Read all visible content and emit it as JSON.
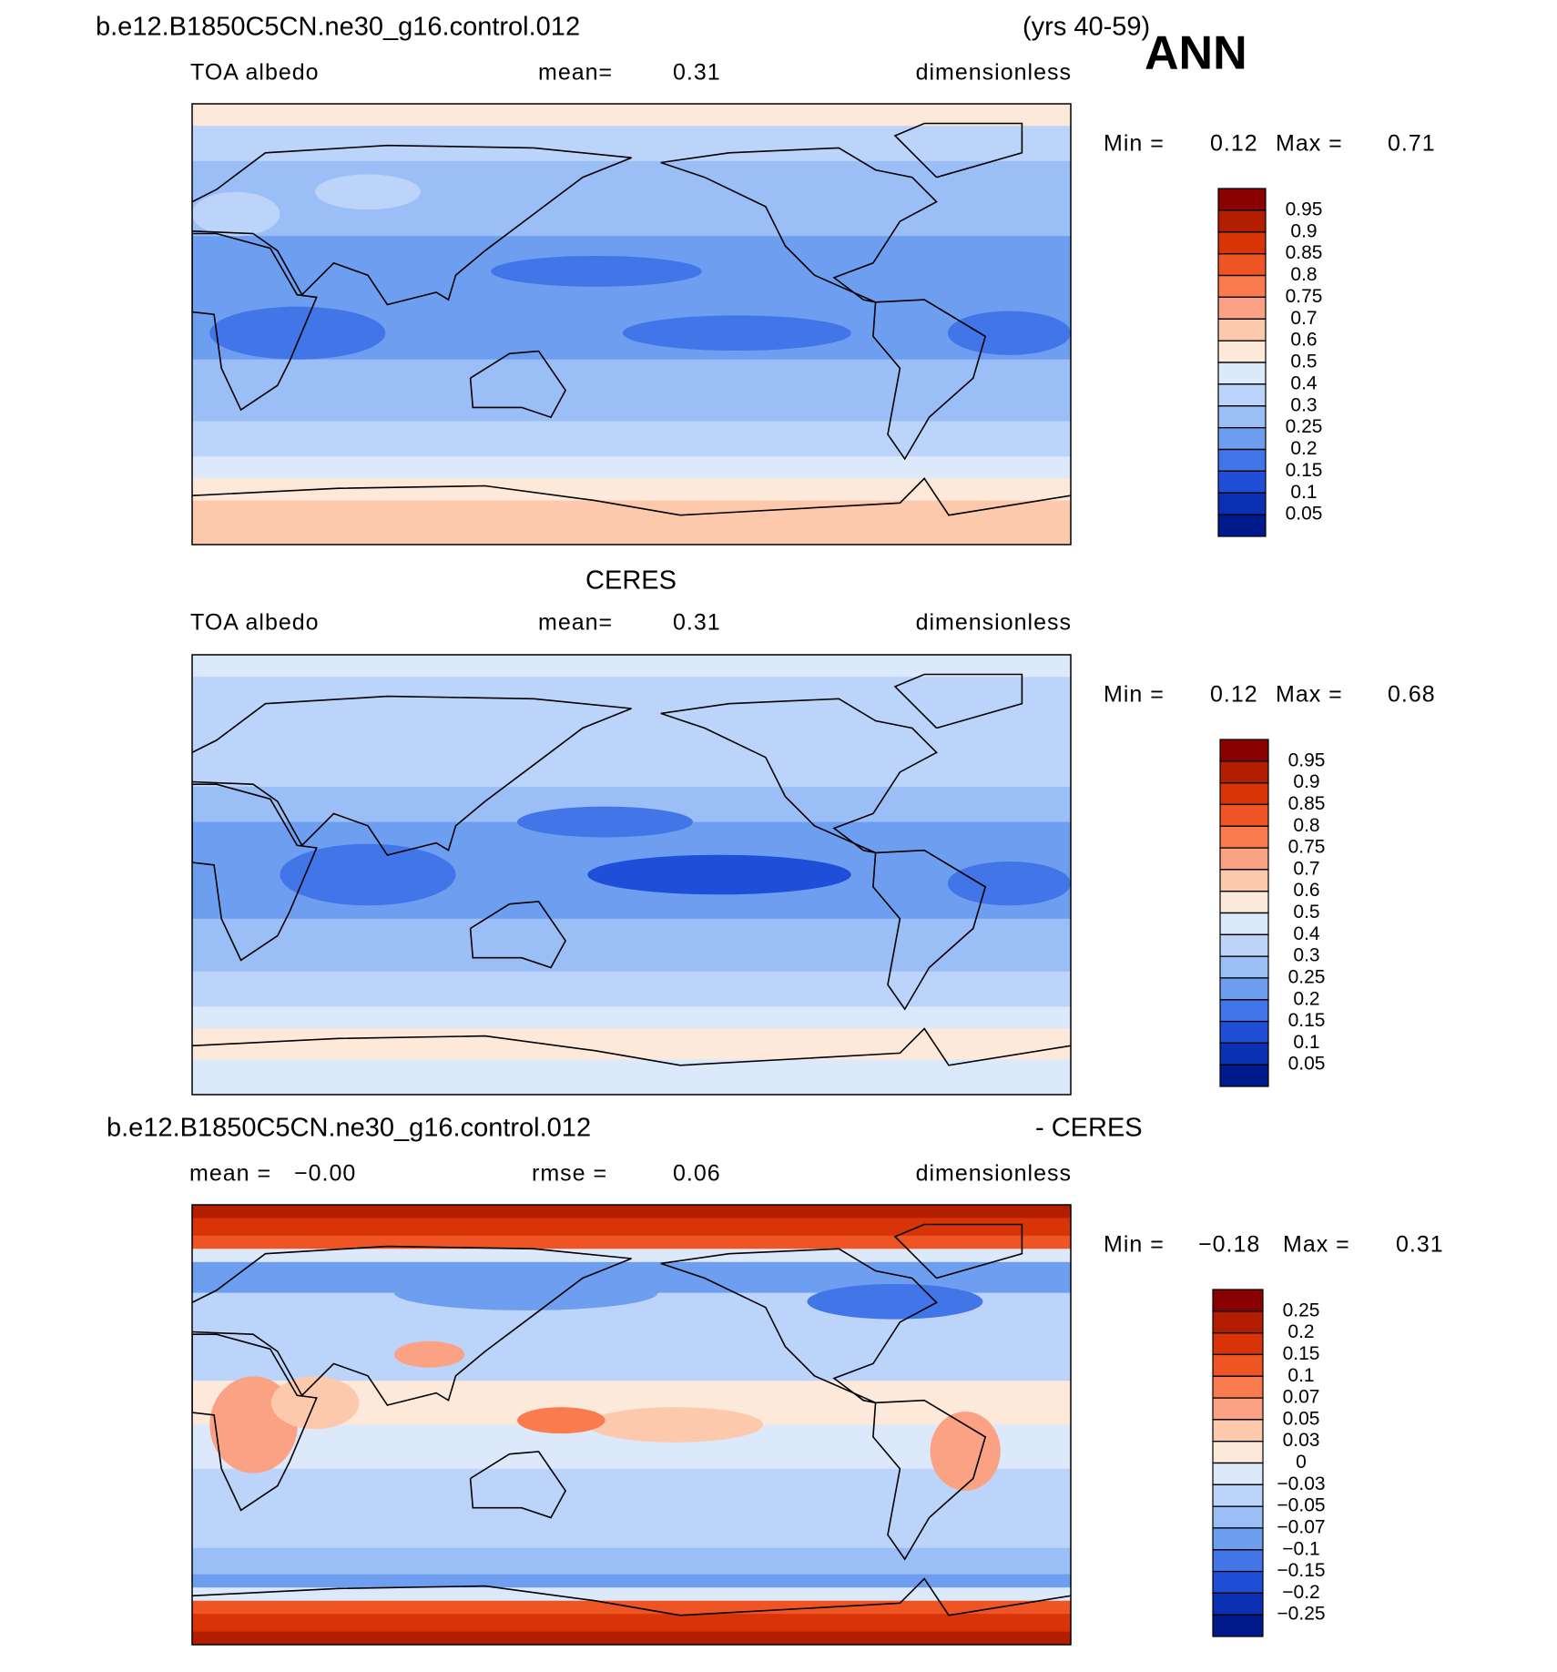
{
  "header": {
    "case": "b.e12.B1850C5CN.ne30_g16.control.012",
    "years": "(yrs 40-59)",
    "season": "ANN"
  },
  "panels": [
    {
      "variable": "TOA albedo",
      "mean_label": "mean=",
      "mean": "0.31",
      "units": "dimensionless",
      "min_label": "Min =",
      "min": "0.12",
      "max_label": "Max =",
      "max": "0.71",
      "colorbar": {
        "colors": [
          "#8b0000",
          "#b41e00",
          "#d83408",
          "#ee5424",
          "#f97b4e",
          "#fca284",
          "#fdc9ad",
          "#fde9da",
          "#dce9fb",
          "#bcd4fa",
          "#9bbef7",
          "#6e9ef0",
          "#4175e8",
          "#1f4fd8",
          "#0b30b4",
          "#001a8c"
        ],
        "levels": [
          0.95,
          0.9,
          0.85,
          0.8,
          0.75,
          0.7,
          0.6,
          0.5,
          0.4,
          0.3,
          0.25,
          0.2,
          0.15,
          0.1,
          0.05
        ]
      }
    },
    {
      "title": "CERES",
      "variable": "TOA albedo",
      "mean_label": "mean=",
      "mean": "0.31",
      "units": "dimensionless",
      "min_label": "Min =",
      "min": "0.12",
      "max_label": "Max =",
      "max": "0.68",
      "colorbar": {
        "colors": [
          "#8b0000",
          "#b41e00",
          "#d83408",
          "#ee5424",
          "#f97b4e",
          "#fca284",
          "#fdc9ad",
          "#fde9da",
          "#dce9fb",
          "#bcd4fa",
          "#9bbef7",
          "#6e9ef0",
          "#4175e8",
          "#1f4fd8",
          "#0b30b4",
          "#001a8c"
        ],
        "levels": [
          0.95,
          0.9,
          0.85,
          0.8,
          0.75,
          0.7,
          0.6,
          0.5,
          0.4,
          0.3,
          0.25,
          0.2,
          0.15,
          0.1,
          0.05
        ]
      }
    },
    {
      "title": "b.e12.B1850C5CN.ne30_g16.control.012",
      "title_right": "- CERES",
      "mean_label": "mean =",
      "mean": "−0.00",
      "rmse_label": "rmse =",
      "rmse": "0.06",
      "units": "dimensionless",
      "min_label": "Min =",
      "min": "−0.18",
      "max_label": "Max =",
      "max": "0.31",
      "colorbar": {
        "colors": [
          "#8b0000",
          "#b41e00",
          "#d83408",
          "#ee5424",
          "#f97b4e",
          "#fca284",
          "#fdc9ad",
          "#fde9da",
          "#dce9fb",
          "#bcd4fa",
          "#9bbef7",
          "#6e9ef0",
          "#4175e8",
          "#1f4fd8",
          "#0b30b4",
          "#001a8c"
        ],
        "levels": [
          0.25,
          0.2,
          0.15,
          0.1,
          0.07,
          0.05,
          0.03,
          0,
          {
            "value": -0.03,
            "label": "−0.03"
          },
          {
            "value": -0.05,
            "label": "−0.05"
          },
          {
            "value": -0.07,
            "label": "−0.07"
          },
          {
            "value": -0.1,
            "label": "−0.1"
          },
          {
            "value": -0.15,
            "label": "−0.15"
          },
          {
            "value": -0.2,
            "label": "−0.2"
          },
          {
            "value": -0.25,
            "label": "−0.25"
          }
        ]
      }
    }
  ]
}
